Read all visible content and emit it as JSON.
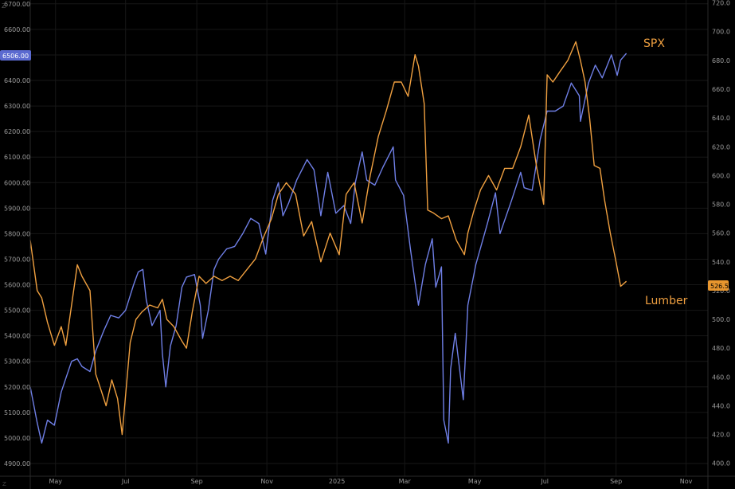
{
  "chart_data": {
    "type": "line",
    "grid": true,
    "left_axis": {
      "ticks": [
        "6700.00",
        "6600.00",
        "6500.00",
        "6400.00",
        "6300.00",
        "6200.00",
        "6100.00",
        "6000.00",
        "5900.00",
        "5800.00",
        "5700.00",
        "5600.00",
        "5500.00",
        "5400.00",
        "5300.00",
        "5200.00",
        "5100.00",
        "5000.00",
        "4900.00"
      ],
      "range": [
        4850,
        6715
      ]
    },
    "right_axis": {
      "ticks": [
        "720.0",
        "700.0",
        "680.0",
        "660.0",
        "640.0",
        "620.0",
        "600.0",
        "580.0",
        "560.0",
        "540.0",
        "520.0",
        "500.0",
        "480.0",
        "460.0",
        "440.0",
        "420.0",
        "400.0"
      ],
      "range": [
        391,
        722
      ]
    },
    "x_axis": {
      "ticks": [
        "May",
        "Jul",
        "Sep",
        "Nov",
        "2025",
        "Mar",
        "May",
        "Jul",
        "Sep",
        "Nov"
      ],
      "range": [
        "2024-04-09",
        "2025-11-20"
      ]
    },
    "price_badges": {
      "spx": "6506.00",
      "lumber": "526.5"
    },
    "annotations": {
      "spx": "SPX",
      "lumber": "Lumber"
    },
    "watermark": "Z",
    "colors": {
      "spx": "#6f7fe6",
      "lumber": "#f0a040",
      "background": "#000000",
      "badge_spx": "#5b6ad0",
      "badge_lumber": "#e8962e"
    },
    "series": [
      {
        "key": "spx",
        "axis": "left",
        "points": [
          [
            "2024-04-09",
            5200
          ],
          [
            "2024-04-15",
            5060
          ],
          [
            "2024-04-19",
            4980
          ],
          [
            "2024-04-24",
            5070
          ],
          [
            "2024-04-30",
            5050
          ],
          [
            "2024-05-06",
            5180
          ],
          [
            "2024-05-15",
            5300
          ],
          [
            "2024-05-20",
            5310
          ],
          [
            "2024-05-24",
            5280
          ],
          [
            "2024-05-31",
            5260
          ],
          [
            "2024-06-05",
            5340
          ],
          [
            "2024-06-12",
            5420
          ],
          [
            "2024-06-18",
            5480
          ],
          [
            "2024-06-25",
            5470
          ],
          [
            "2024-07-01",
            5500
          ],
          [
            "2024-07-08",
            5600
          ],
          [
            "2024-07-12",
            5650
          ],
          [
            "2024-07-16",
            5660
          ],
          [
            "2024-07-19",
            5540
          ],
          [
            "2024-07-24",
            5440
          ],
          [
            "2024-07-31",
            5500
          ],
          [
            "2024-08-02",
            5330
          ],
          [
            "2024-08-05",
            5200
          ],
          [
            "2024-08-09",
            5360
          ],
          [
            "2024-08-14",
            5440
          ],
          [
            "2024-08-19",
            5590
          ],
          [
            "2024-08-23",
            5630
          ],
          [
            "2024-08-30",
            5640
          ],
          [
            "2024-09-04",
            5520
          ],
          [
            "2024-09-06",
            5390
          ],
          [
            "2024-09-11",
            5500
          ],
          [
            "2024-09-16",
            5660
          ],
          [
            "2024-09-20",
            5700
          ],
          [
            "2024-09-27",
            5740
          ],
          [
            "2024-10-04",
            5750
          ],
          [
            "2024-10-11",
            5800
          ],
          [
            "2024-10-18",
            5860
          ],
          [
            "2024-10-25",
            5840
          ],
          [
            "2024-10-31",
            5720
          ],
          [
            "2024-11-06",
            5930
          ],
          [
            "2024-11-11",
            6000
          ],
          [
            "2024-11-15",
            5870
          ],
          [
            "2024-11-20",
            5920
          ],
          [
            "2024-11-27",
            6010
          ],
          [
            "2024-12-06",
            6090
          ],
          [
            "2024-12-12",
            6050
          ],
          [
            "2024-12-18",
            5870
          ],
          [
            "2024-12-24",
            6040
          ],
          [
            "2024-12-31",
            5880
          ],
          [
            "2025-01-07",
            5910
          ],
          [
            "2025-01-13",
            5840
          ],
          [
            "2025-01-17",
            6000
          ],
          [
            "2025-01-23",
            6120
          ],
          [
            "2025-01-27",
            6010
          ],
          [
            "2025-02-03",
            5990
          ],
          [
            "2025-02-10",
            6060
          ],
          [
            "2025-02-19",
            6140
          ],
          [
            "2025-02-21",
            6010
          ],
          [
            "2025-02-28",
            5950
          ],
          [
            "2025-03-06",
            5740
          ],
          [
            "2025-03-10",
            5610
          ],
          [
            "2025-03-13",
            5520
          ],
          [
            "2025-03-19",
            5680
          ],
          [
            "2025-03-25",
            5780
          ],
          [
            "2025-03-28",
            5590
          ],
          [
            "2025-04-02",
            5670
          ],
          [
            "2025-04-04",
            5070
          ],
          [
            "2025-04-08",
            4980
          ],
          [
            "2025-04-10",
            5270
          ],
          [
            "2025-04-14",
            5410
          ],
          [
            "2025-04-21",
            5150
          ],
          [
            "2025-04-25",
            5520
          ],
          [
            "2025-05-02",
            5680
          ],
          [
            "2025-05-12",
            5840
          ],
          [
            "2025-05-19",
            5960
          ],
          [
            "2025-05-23",
            5800
          ],
          [
            "2025-06-02",
            5930
          ],
          [
            "2025-06-10",
            6040
          ],
          [
            "2025-06-13",
            5980
          ],
          [
            "2025-06-20",
            5970
          ],
          [
            "2025-06-27",
            6170
          ],
          [
            "2025-07-03",
            6280
          ],
          [
            "2025-07-10",
            6280
          ],
          [
            "2025-07-17",
            6300
          ],
          [
            "2025-07-24",
            6390
          ],
          [
            "2025-07-31",
            6340
          ],
          [
            "2025-08-01",
            6240
          ],
          [
            "2025-08-08",
            6390
          ],
          [
            "2025-08-14",
            6460
          ],
          [
            "2025-08-20",
            6410
          ],
          [
            "2025-08-28",
            6500
          ],
          [
            "2025-09-02",
            6420
          ],
          [
            "2025-09-05",
            6480
          ],
          [
            "2025-09-10",
            6506
          ]
        ]
      },
      {
        "key": "lumber",
        "axis": "right",
        "points": [
          [
            "2024-04-09",
            555
          ],
          [
            "2024-04-15",
            520
          ],
          [
            "2024-04-19",
            515
          ],
          [
            "2024-04-24",
            498
          ],
          [
            "2024-04-30",
            482
          ],
          [
            "2024-05-06",
            495
          ],
          [
            "2024-05-10",
            482
          ],
          [
            "2024-05-15",
            510
          ],
          [
            "2024-05-20",
            538
          ],
          [
            "2024-05-24",
            530
          ],
          [
            "2024-05-31",
            520
          ],
          [
            "2024-06-05",
            462
          ],
          [
            "2024-06-10",
            450
          ],
          [
            "2024-06-14",
            440
          ],
          [
            "2024-06-19",
            458
          ],
          [
            "2024-06-24",
            445
          ],
          [
            "2024-06-28",
            420
          ],
          [
            "2024-07-05",
            484
          ],
          [
            "2024-07-10",
            500
          ],
          [
            "2024-07-15",
            505
          ],
          [
            "2024-07-22",
            510
          ],
          [
            "2024-07-29",
            508
          ],
          [
            "2024-08-02",
            514
          ],
          [
            "2024-08-06",
            500
          ],
          [
            "2024-08-12",
            495
          ],
          [
            "2024-08-19",
            485
          ],
          [
            "2024-08-23",
            480
          ],
          [
            "2024-08-28",
            505
          ],
          [
            "2024-09-03",
            530
          ],
          [
            "2024-09-09",
            525
          ],
          [
            "2024-09-16",
            530
          ],
          [
            "2024-09-23",
            527
          ],
          [
            "2024-09-30",
            530
          ],
          [
            "2024-10-07",
            527
          ],
          [
            "2024-10-14",
            534
          ],
          [
            "2024-10-22",
            542
          ],
          [
            "2024-10-29",
            557
          ],
          [
            "2024-11-05",
            570
          ],
          [
            "2024-11-11",
            587
          ],
          [
            "2024-11-18",
            595
          ],
          [
            "2024-11-26",
            587
          ],
          [
            "2024-12-03",
            558
          ],
          [
            "2024-12-10",
            568
          ],
          [
            "2024-12-18",
            540
          ],
          [
            "2024-12-26",
            560
          ],
          [
            "2025-01-03",
            545
          ],
          [
            "2025-01-09",
            587
          ],
          [
            "2025-01-16",
            595
          ],
          [
            "2025-01-23",
            567
          ],
          [
            "2025-01-30",
            600
          ],
          [
            "2025-02-06",
            627
          ],
          [
            "2025-02-13",
            645
          ],
          [
            "2025-02-20",
            665
          ],
          [
            "2025-02-26",
            665
          ],
          [
            "2025-03-04",
            655
          ],
          [
            "2025-03-10",
            684
          ],
          [
            "2025-03-13",
            676
          ],
          [
            "2025-03-18",
            650
          ],
          [
            "2025-03-21",
            576
          ],
          [
            "2025-03-26",
            574
          ],
          [
            "2025-04-02",
            570
          ],
          [
            "2025-04-08",
            572
          ],
          [
            "2025-04-15",
            555
          ],
          [
            "2025-04-22",
            545
          ],
          [
            "2025-04-25",
            560
          ],
          [
            "2025-04-30",
            575
          ],
          [
            "2025-05-06",
            590
          ],
          [
            "2025-05-13",
            600
          ],
          [
            "2025-05-20",
            590
          ],
          [
            "2025-05-27",
            605
          ],
          [
            "2025-06-03",
            605
          ],
          [
            "2025-06-10",
            620
          ],
          [
            "2025-06-17",
            642
          ],
          [
            "2025-06-24",
            605
          ],
          [
            "2025-06-30",
            580
          ],
          [
            "2025-07-03",
            670
          ],
          [
            "2025-07-08",
            665
          ],
          [
            "2025-07-14",
            672
          ],
          [
            "2025-07-21",
            680
          ],
          [
            "2025-07-28",
            693
          ],
          [
            "2025-08-01",
            680
          ],
          [
            "2025-08-05",
            665
          ],
          [
            "2025-08-09",
            640
          ],
          [
            "2025-08-13",
            607
          ],
          [
            "2025-08-18",
            605
          ],
          [
            "2025-08-22",
            583
          ],
          [
            "2025-08-27",
            560
          ],
          [
            "2025-09-01",
            540
          ],
          [
            "2025-09-05",
            523
          ],
          [
            "2025-09-10",
            526.5
          ]
        ]
      }
    ]
  }
}
